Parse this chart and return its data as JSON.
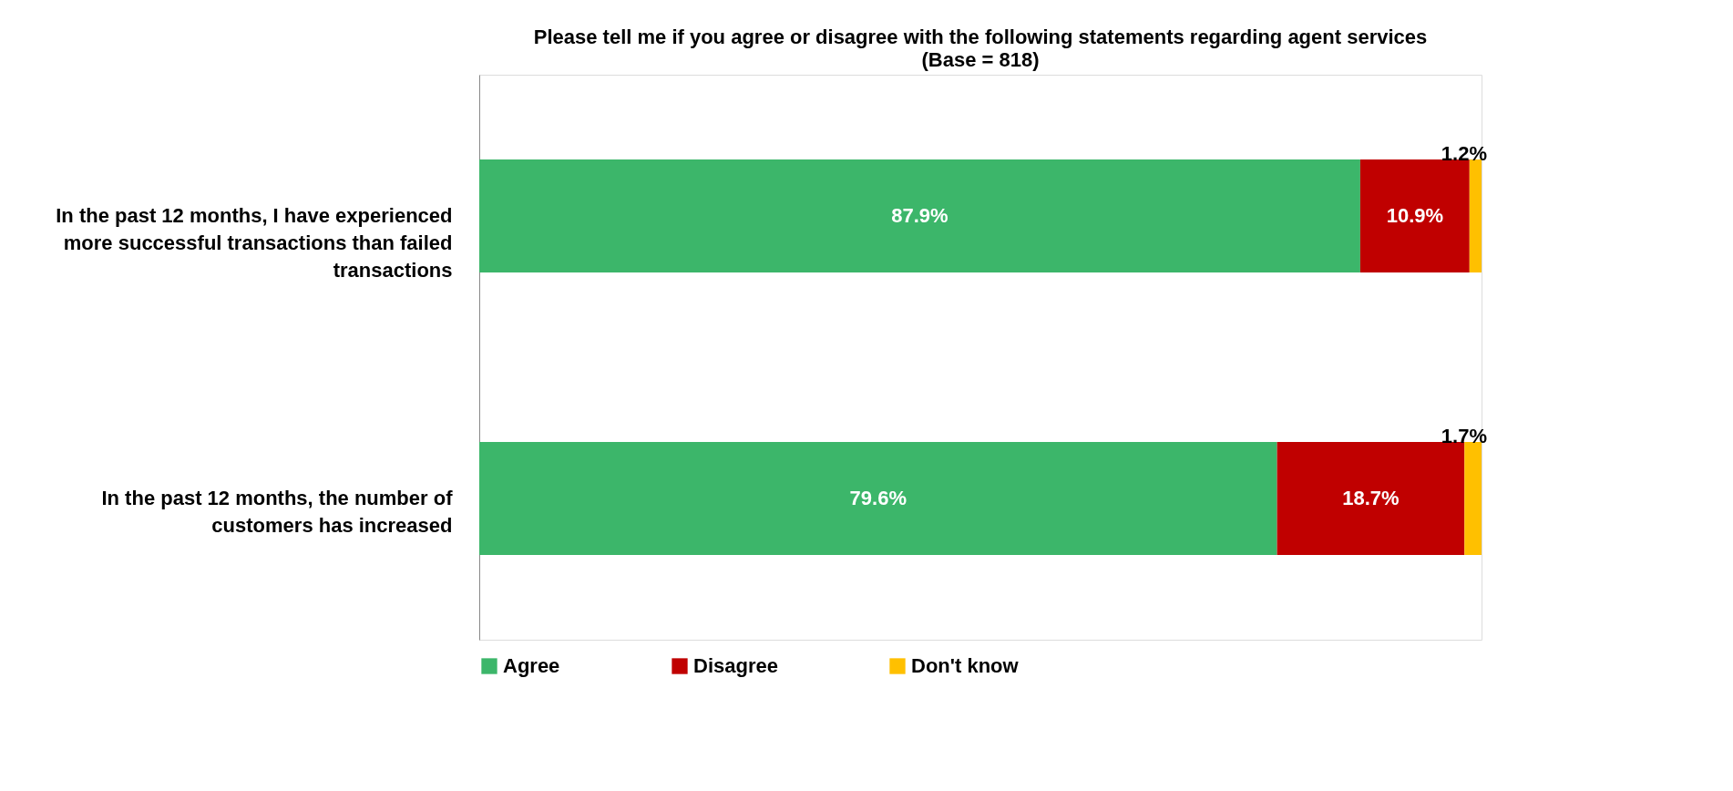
{
  "chart_data": {
    "type": "bar",
    "orientation": "horizontal",
    "stacked": true,
    "title": "Please tell me if you agree or disagree with the following statements regarding agent services",
    "subtitle": "(Base = 818)",
    "categories": [
      "In the past 12 months, I have experienced more successful transactions than failed transactions",
      "In the past 12 months, the number of customers has increased"
    ],
    "series": [
      {
        "name": "Agree",
        "color": "#3cb66a",
        "values": [
          87.9,
          79.6
        ],
        "value_labels": [
          "87.9%",
          "79.6%"
        ]
      },
      {
        "name": "Disagree",
        "color": "#c00000",
        "values": [
          10.9,
          18.7
        ],
        "value_labels": [
          "10.9%",
          "18.7%"
        ]
      },
      {
        "name": "Don't know",
        "color": "#ffc000",
        "values": [
          1.2,
          1.7
        ],
        "value_labels": [
          "1.2%",
          "1.7%"
        ]
      }
    ],
    "legend": "bottom"
  }
}
